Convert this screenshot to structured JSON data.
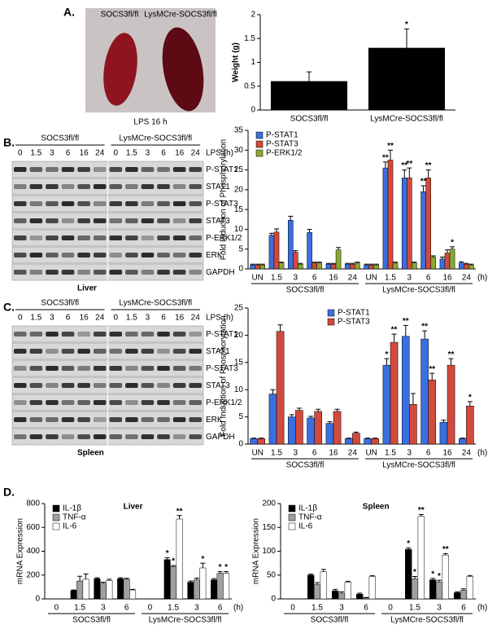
{
  "panel_a": {
    "label": "A.",
    "photo_labels": [
      "SOCS3fl/fl",
      "LysMCre-SOCS3fl/fl"
    ],
    "caption": "LPS 16 h"
  },
  "panel_d": {
    "label": "D."
  },
  "blots": [
    {
      "label": "B.",
      "groups": [
        "SOCS3fl/fl",
        "LysMCre-SOCS3fl/fl"
      ],
      "times": [
        "0",
        "1.5",
        "3",
        "6",
        "16",
        "24",
        "0",
        "1.5",
        "3",
        "6",
        "16",
        "24"
      ],
      "unit": "LPS (h)",
      "rows": [
        "P-STAT1",
        "STAT1",
        "P-STAT3",
        "STAT3",
        "P-ERK1/2",
        "ERK",
        "GAPDH"
      ],
      "tissue": "Liver"
    },
    {
      "label": "C.",
      "groups": [
        "SOCS3fl/fl",
        "LysMCre-SOCS3fl/fl"
      ],
      "times": [
        "0",
        "1.5",
        "3",
        "6",
        "16",
        "24",
        "0",
        "1.5",
        "3",
        "6",
        "16",
        "24"
      ],
      "unit": "LPS (h)",
      "rows": [
        "P-STAT1",
        "STAT1",
        "P-STAT3",
        "STAT3",
        "P-ERK1/2",
        "ERK",
        "GAPDH"
      ],
      "tissue": "Spleen"
    }
  ],
  "chart_data": [
    {
      "type": "bar",
      "ylabel": "Weight (g)",
      "categories": [
        "SOCS3fl/fl",
        "LysMCre-SOCS3fl/fl"
      ],
      "series": [
        {
          "name": "Weight",
          "color": "#000000",
          "values": [
            0.6,
            1.3
          ],
          "errors": [
            0.2,
            0.4
          ]
        }
      ],
      "ylim": [
        0,
        2
      ],
      "yticks": [
        0,
        0.5,
        1,
        1.5,
        2
      ],
      "annotations": [
        {
          "text": "*",
          "series": 0,
          "index": 1
        }
      ]
    },
    {
      "type": "bar",
      "ylabel": "Fold Induction of Phosphorylation",
      "legend": "upper left",
      "categories": [
        "UN",
        "1.5",
        "3",
        "6",
        "16",
        "24",
        "UN",
        "1.5",
        "3",
        "6",
        "16",
        "24"
      ],
      "groups": [
        {
          "label": "SOCS3fl/fl",
          "start": 0,
          "end": 5
        },
        {
          "label": "LysMCre-SOCS3fl/fl",
          "start": 6,
          "end": 11
        }
      ],
      "unit": "(h)",
      "series": [
        {
          "name": "P-STAT1",
          "color": "#3a6fe0",
          "values": [
            1,
            8.5,
            12.3,
            9.2,
            1.2,
            1.2,
            1,
            25.5,
            23,
            19.5,
            2.5,
            1.5
          ],
          "errors": [
            0.2,
            0.5,
            1,
            0.8,
            0.2,
            0.2,
            0.2,
            1.5,
            2,
            1.5,
            0.5,
            0.3
          ]
        },
        {
          "name": "P-STAT3",
          "color": "#d24a3c",
          "values": [
            1,
            9.3,
            4.2,
            1.5,
            1.2,
            1.2,
            1,
            27.5,
            23,
            23,
            4,
            1.2
          ],
          "errors": [
            0.2,
            0.8,
            0.4,
            0.2,
            0.2,
            0.2,
            0.2,
            2.5,
            2.5,
            2,
            0.8,
            0.2
          ]
        },
        {
          "name": "P-ERK1/2",
          "color": "#8aa832",
          "values": [
            1,
            1.5,
            1.2,
            1.5,
            4.8,
            1.5,
            1,
            1.5,
            1.5,
            3,
            5,
            1
          ],
          "errors": [
            0.2,
            0.2,
            0.2,
            0.2,
            0.6,
            0.2,
            0.2,
            0.2,
            0.2,
            0.3,
            0.6,
            0.2
          ]
        }
      ],
      "ylim": [
        0,
        35
      ],
      "yticks": [
        0,
        5,
        10,
        15,
        20,
        25,
        30,
        35
      ],
      "annotations": [
        {
          "text": "**",
          "series": 0,
          "index": 7
        },
        {
          "text": "**",
          "series": 1,
          "index": 7
        },
        {
          "text": "**",
          "series": 0,
          "index": 8
        },
        {
          "text": "**",
          "series": 1,
          "index": 8
        },
        {
          "text": "**",
          "series": 0,
          "index": 9
        },
        {
          "text": "**",
          "series": 1,
          "index": 9
        },
        {
          "text": "*",
          "series": 2,
          "index": 10
        }
      ]
    },
    {
      "type": "bar",
      "ylabel": "Fold Induction of Phosphorylation",
      "legend": "upper center",
      "categories": [
        "UN",
        "1.5",
        "3",
        "6",
        "16",
        "24",
        "UN",
        "1.5",
        "3",
        "6",
        "16",
        "24"
      ],
      "groups": [
        {
          "label": "SOCS3fl/fl",
          "start": 0,
          "end": 5
        },
        {
          "label": "LysMCre-SOCS3fl/fl",
          "start": 6,
          "end": 11
        }
      ],
      "unit": "(h)",
      "series": [
        {
          "name": "P-STAT1",
          "color": "#3a6fe0",
          "values": [
            1,
            9.2,
            5,
            4.8,
            3.8,
            1,
            1,
            14.5,
            19.8,
            19.3,
            4,
            1
          ],
          "errors": [
            0.1,
            0.8,
            0.4,
            0.3,
            0.3,
            0.1,
            0.1,
            1.2,
            2,
            1.5,
            0.4,
            0.1
          ]
        },
        {
          "name": "P-STAT3",
          "color": "#d24a3c",
          "values": [
            1,
            20.7,
            6.2,
            6,
            6,
            2,
            1,
            18.7,
            7.3,
            11.8,
            14.5,
            7
          ],
          "errors": [
            0.1,
            1.2,
            0.4,
            0.4,
            0.4,
            0.2,
            0.1,
            1.5,
            2,
            1.2,
            1.2,
            0.8
          ]
        }
      ],
      "ylim": [
        0,
        25
      ],
      "yticks": [
        0,
        5,
        10,
        15,
        20,
        25
      ],
      "annotations": [
        {
          "text": "*",
          "series": 0,
          "index": 7
        },
        {
          "text": "**",
          "series": 1,
          "index": 7
        },
        {
          "text": "**",
          "series": 0,
          "index": 8
        },
        {
          "text": "**",
          "series": 0,
          "index": 9
        },
        {
          "text": "**",
          "series": 1,
          "index": 9
        },
        {
          "text": "**",
          "series": 1,
          "index": 10
        },
        {
          "text": "*",
          "series": 1,
          "index": 11
        }
      ]
    },
    {
      "type": "bar",
      "title": "Liver",
      "ylabel": "mRNA Expression",
      "legend": "upper left",
      "categories": [
        "0",
        "1.5",
        "3",
        "6",
        "0",
        "1.5",
        "3",
        "6"
      ],
      "groups": [
        {
          "label": "SOCS3fl/fl",
          "start": 0,
          "end": 3
        },
        {
          "label": "LysMCre-SOCS3fl/fl",
          "start": 4,
          "end": 7
        }
      ],
      "unit": "(h)",
      "series": [
        {
          "name": "IL-1β",
          "color": "#000000",
          "values": [
            0,
            70,
            170,
            170,
            0,
            330,
            140,
            160
          ],
          "errors": [
            0,
            5,
            8,
            8,
            0,
            15,
            10,
            10
          ]
        },
        {
          "name": "TNF-α",
          "color": "#a0a0a0",
          "values": [
            0,
            150,
            130,
            165,
            0,
            270,
            160,
            215
          ],
          "errors": [
            0,
            40,
            10,
            8,
            0,
            10,
            15,
            15
          ]
        },
        {
          "name": "IL-6",
          "color": "#ffffff",
          "values": [
            0,
            165,
            155,
            75,
            0,
            670,
            260,
            215
          ],
          "errors": [
            0,
            45,
            10,
            5,
            0,
            30,
            40,
            15
          ]
        }
      ],
      "ylim": [
        0,
        800
      ],
      "yticks": [
        0,
        200,
        400,
        600,
        800
      ],
      "annotations": [
        {
          "text": "*",
          "series": 0,
          "index": 5
        },
        {
          "text": "*",
          "series": 1,
          "index": 5
        },
        {
          "text": "**",
          "series": 2,
          "index": 5
        },
        {
          "text": "*",
          "series": 2,
          "index": 6
        },
        {
          "text": "*",
          "series": 1,
          "index": 7
        },
        {
          "text": "*",
          "series": 2,
          "index": 7
        }
      ]
    },
    {
      "type": "bar",
      "title": "Spleen",
      "ylabel": "mRNA Expression",
      "legend": "upper left",
      "categories": [
        "0",
        "1.5",
        "3",
        "6",
        "0",
        "1.5",
        "3",
        "6"
      ],
      "groups": [
        {
          "label": "SOCS3fl/fl",
          "start": 0,
          "end": 3
        },
        {
          "label": "LysMCre-SOCS3fl/fl",
          "start": 4,
          "end": 7
        }
      ],
      "unit": "(h)",
      "series": [
        {
          "name": "IL-1β",
          "color": "#000000",
          "values": [
            0,
            50,
            17,
            10,
            0,
            104,
            40,
            13
          ],
          "errors": [
            0,
            2,
            3,
            2,
            0,
            3,
            3,
            2
          ]
        },
        {
          "name": "TNF-α",
          "color": "#a0a0a0",
          "values": [
            0,
            30,
            12,
            2,
            0,
            42,
            35,
            18
          ],
          "errors": [
            0,
            4,
            3,
            1,
            0,
            5,
            4,
            3
          ]
        },
        {
          "name": "IL-6",
          "color": "#ffffff",
          "values": [
            0,
            57,
            35,
            47,
            0,
            173,
            92,
            47
          ],
          "errors": [
            0,
            5,
            2,
            2,
            0,
            4,
            3,
            2
          ]
        }
      ],
      "ylim": [
        0,
        200
      ],
      "yticks": [
        0,
        50,
        100,
        150,
        200
      ],
      "annotations": [
        {
          "text": "*",
          "series": 0,
          "index": 5
        },
        {
          "text": "*",
          "series": 1,
          "index": 5
        },
        {
          "text": "**",
          "series": 2,
          "index": 5
        },
        {
          "text": "*",
          "series": 0,
          "index": 6
        },
        {
          "text": "*",
          "series": 1,
          "index": 6
        },
        {
          "text": "**",
          "series": 2,
          "index": 6
        }
      ]
    }
  ]
}
